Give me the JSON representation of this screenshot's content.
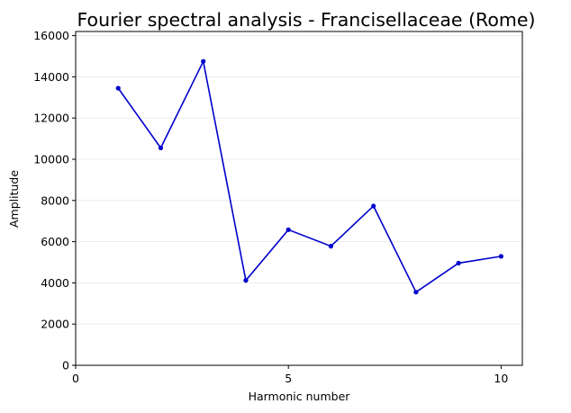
{
  "chart_data": {
    "type": "line",
    "title": "Fourier spectral analysis - Francisellaceae (Rome)",
    "xlabel": "Harmonic number",
    "ylabel": "Amplitude",
    "xlim": [
      0,
      10.5
    ],
    "ylim": [
      0,
      16200
    ],
    "xticks": [
      0,
      5,
      10
    ],
    "yticks": [
      0,
      2000,
      4000,
      6000,
      8000,
      10000,
      12000,
      14000,
      16000
    ],
    "grid": "horizontal",
    "series": [
      {
        "color": "#0000cc",
        "x": [
          1,
          2,
          3,
          4,
          5,
          6,
          7,
          8,
          9,
          10
        ],
        "y": [
          13450,
          10550,
          14750,
          4120,
          6580,
          5780,
          7730,
          3550,
          4960,
          5290
        ]
      }
    ]
  }
}
